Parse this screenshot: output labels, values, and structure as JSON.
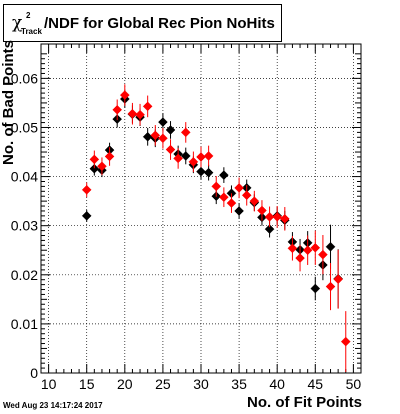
{
  "header": {
    "title_main": "/NDF for Global Rec Pion NoHits",
    "title_chi": "χ",
    "title_sup": "2",
    "title_sub": "Track"
  },
  "footer": {
    "timestamp": "Wed Aug 23 14:17:24 2017"
  },
  "chart_data": {
    "type": "scatter",
    "title": "χ²_Track/NDF for Global Rec Pion NoHits",
    "xlabel": "No. of Fit Points",
    "ylabel": "No. of Bad Points",
    "xlim": [
      9,
      51
    ],
    "ylim": [
      0,
      0.067
    ],
    "x_ticks": [
      10,
      15,
      20,
      25,
      30,
      35,
      40,
      45,
      50
    ],
    "x_tick_labels": [
      "10",
      "15",
      "20",
      "25",
      "30",
      "35",
      "40",
      "45",
      "50"
    ],
    "y_ticks": [
      0,
      0.01,
      0.02,
      0.03,
      0.04,
      0.05,
      0.06
    ],
    "y_tick_labels": [
      "0",
      "0.01",
      "0.02",
      "0.03",
      "0.04",
      "0.05",
      "0.06"
    ],
    "grid": true,
    "series": [
      {
        "color": "#000000",
        "points": [
          {
            "x": 15,
            "y": 0.032,
            "err": 0.0012
          },
          {
            "x": 16,
            "y": 0.0416,
            "err": 0.0014
          },
          {
            "x": 17,
            "y": 0.0413,
            "err": 0.0014
          },
          {
            "x": 18,
            "y": 0.0454,
            "err": 0.0015
          },
          {
            "x": 19,
            "y": 0.0517,
            "err": 0.0017
          },
          {
            "x": 20,
            "y": 0.0558,
            "err": 0.0018
          },
          {
            "x": 21,
            "y": 0.0527,
            "err": 0.0018
          },
          {
            "x": 22,
            "y": 0.0521,
            "err": 0.0018
          },
          {
            "x": 23,
            "y": 0.0481,
            "err": 0.0018
          },
          {
            "x": 24,
            "y": 0.0478,
            "err": 0.0018
          },
          {
            "x": 25,
            "y": 0.0511,
            "err": 0.0018
          },
          {
            "x": 26,
            "y": 0.0495,
            "err": 0.0018
          },
          {
            "x": 27,
            "y": 0.0446,
            "err": 0.0017
          },
          {
            "x": 28,
            "y": 0.0442,
            "err": 0.0017
          },
          {
            "x": 29,
            "y": 0.0424,
            "err": 0.0017
          },
          {
            "x": 30,
            "y": 0.041,
            "err": 0.0016
          },
          {
            "x": 31,
            "y": 0.0408,
            "err": 0.0016
          },
          {
            "x": 32,
            "y": 0.036,
            "err": 0.0016
          },
          {
            "x": 33,
            "y": 0.0403,
            "err": 0.0016
          },
          {
            "x": 34,
            "y": 0.0366,
            "err": 0.0016
          },
          {
            "x": 35,
            "y": 0.033,
            "err": 0.0016
          },
          {
            "x": 36,
            "y": 0.0377,
            "err": 0.0017
          },
          {
            "x": 37,
            "y": 0.0347,
            "err": 0.0017
          },
          {
            "x": 38,
            "y": 0.0317,
            "err": 0.0017
          },
          {
            "x": 39,
            "y": 0.0293,
            "err": 0.0017
          },
          {
            "x": 40,
            "y": 0.032,
            "err": 0.0018
          },
          {
            "x": 41,
            "y": 0.0311,
            "err": 0.0019
          },
          {
            "x": 42,
            "y": 0.0267,
            "err": 0.002
          },
          {
            "x": 43,
            "y": 0.0251,
            "err": 0.0022
          },
          {
            "x": 44,
            "y": 0.0265,
            "err": 0.0024
          },
          {
            "x": 45,
            "y": 0.0172,
            "err": 0.0024
          },
          {
            "x": 46,
            "y": 0.022,
            "err": 0.0031
          },
          {
            "x": 47,
            "y": 0.0257,
            "err": 0.0045
          },
          {
            "x": 48,
            "y": 0.0192,
            "err": 0.006
          }
        ]
      },
      {
        "color": "#ff0000",
        "points": [
          {
            "x": 15,
            "y": 0.0373,
            "err": 0.0015
          },
          {
            "x": 16,
            "y": 0.0435,
            "err": 0.0018
          },
          {
            "x": 17,
            "y": 0.0421,
            "err": 0.0018
          },
          {
            "x": 18,
            "y": 0.0441,
            "err": 0.0019
          },
          {
            "x": 19,
            "y": 0.0536,
            "err": 0.0021
          },
          {
            "x": 20,
            "y": 0.0566,
            "err": 0.0022
          },
          {
            "x": 21,
            "y": 0.0528,
            "err": 0.0022
          },
          {
            "x": 22,
            "y": 0.0526,
            "err": 0.0022
          },
          {
            "x": 23,
            "y": 0.0543,
            "err": 0.0022
          },
          {
            "x": 24,
            "y": 0.0484,
            "err": 0.0021
          },
          {
            "x": 25,
            "y": 0.0478,
            "err": 0.0021
          },
          {
            "x": 26,
            "y": 0.0455,
            "err": 0.0021
          },
          {
            "x": 27,
            "y": 0.0437,
            "err": 0.0021
          },
          {
            "x": 28,
            "y": 0.049,
            "err": 0.0021
          },
          {
            "x": 29,
            "y": 0.043,
            "err": 0.0021
          },
          {
            "x": 30,
            "y": 0.044,
            "err": 0.0021
          },
          {
            "x": 31,
            "y": 0.0442,
            "err": 0.0021
          },
          {
            "x": 32,
            "y": 0.038,
            "err": 0.0021
          },
          {
            "x": 33,
            "y": 0.0358,
            "err": 0.002
          },
          {
            "x": 34,
            "y": 0.0346,
            "err": 0.002
          },
          {
            "x": 35,
            "y": 0.0377,
            "err": 0.0021
          },
          {
            "x": 36,
            "y": 0.0362,
            "err": 0.0021
          },
          {
            "x": 37,
            "y": 0.035,
            "err": 0.0021
          },
          {
            "x": 38,
            "y": 0.0331,
            "err": 0.0021
          },
          {
            "x": 39,
            "y": 0.0318,
            "err": 0.0021
          },
          {
            "x": 40,
            "y": 0.0318,
            "err": 0.0022
          },
          {
            "x": 41,
            "y": 0.0314,
            "err": 0.0024
          },
          {
            "x": 42,
            "y": 0.0254,
            "err": 0.0025
          },
          {
            "x": 43,
            "y": 0.0234,
            "err": 0.0027
          },
          {
            "x": 44,
            "y": 0.025,
            "err": 0.003
          },
          {
            "x": 45,
            "y": 0.0255,
            "err": 0.0035
          },
          {
            "x": 46,
            "y": 0.0241,
            "err": 0.004
          },
          {
            "x": 47,
            "y": 0.0176,
            "err": 0.0048
          },
          {
            "x": 48,
            "y": 0.0191,
            "err": 0.006
          },
          {
            "x": 49,
            "y": 0.0064,
            "err": 0.0062
          }
        ]
      }
    ]
  }
}
